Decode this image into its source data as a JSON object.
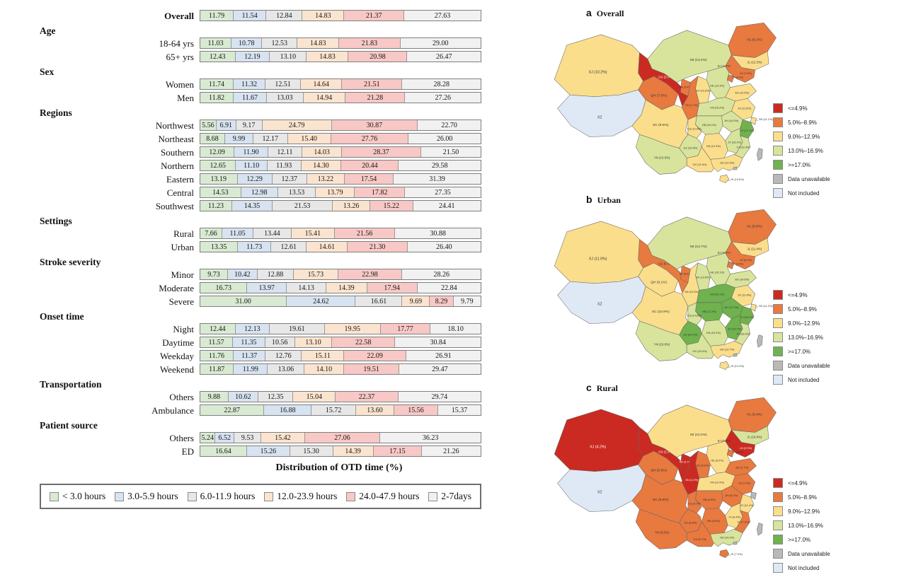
{
  "chart_data": [
    {
      "type": "bar",
      "subtype": "stacked-horizontal-100pct",
      "title": "Distribution of OTD time (%)",
      "series_labels": [
        "< 3.0 hours",
        "3.0-5.9 hours",
        "6.0-11.9 hours",
        "12.0-23.9 hours",
        "24.0-47.9 hours",
        "2-7days"
      ],
      "series_colors": [
        "#d9ead3",
        "#d7e3f0",
        "#e7e7e7",
        "#fbe4cf",
        "#f7c8c5",
        "#f1f1f1"
      ],
      "groups": [
        {
          "header": "",
          "rows": [
            {
              "label": "Overall",
              "bold": true,
              "values": [
                11.79,
                11.54,
                12.84,
                14.83,
                21.37,
                27.63
              ]
            }
          ]
        },
        {
          "header": "Age",
          "rows": [
            {
              "label": "18-64 yrs",
              "values": [
                11.03,
                10.78,
                12.53,
                14.83,
                21.83,
                29.0
              ]
            },
            {
              "label": "65+ yrs",
              "values": [
                12.43,
                12.19,
                13.1,
                14.83,
                20.98,
                26.47
              ]
            }
          ]
        },
        {
          "header": "Sex",
          "rows": [
            {
              "label": "Women",
              "values": [
                11.74,
                11.32,
                12.51,
                14.64,
                21.51,
                28.28
              ]
            },
            {
              "label": "Men",
              "values": [
                11.82,
                11.67,
                13.03,
                14.94,
                21.28,
                27.26
              ]
            }
          ]
        },
        {
          "header": "Regions",
          "rows": [
            {
              "label": "Northwest",
              "values": [
                5.56,
                6.91,
                9.17,
                24.79,
                30.87,
                22.7
              ]
            },
            {
              "label": "Northeast",
              "values": [
                8.68,
                9.99,
                12.17,
                15.4,
                27.76,
                26.0
              ]
            },
            {
              "label": "Southern",
              "values": [
                12.09,
                11.9,
                12.11,
                14.03,
                28.37,
                21.5
              ]
            },
            {
              "label": "Northern",
              "values": [
                12.65,
                11.1,
                11.93,
                14.3,
                20.44,
                29.58
              ]
            },
            {
              "label": "Eastern",
              "values": [
                13.19,
                12.29,
                12.37,
                13.22,
                17.54,
                31.39
              ]
            },
            {
              "label": "Central",
              "values": [
                14.53,
                12.98,
                13.53,
                13.79,
                17.82,
                27.35
              ]
            },
            {
              "label": "Southwest",
              "values": [
                11.23,
                14.35,
                21.53,
                13.26,
                15.22,
                24.41
              ]
            }
          ]
        },
        {
          "header": "Settings",
          "rows": [
            {
              "label": "Rural",
              "values": [
                7.66,
                11.05,
                13.44,
                15.41,
                21.56,
                30.88
              ]
            },
            {
              "label": "Urban",
              "values": [
                13.35,
                11.73,
                12.61,
                14.61,
                21.3,
                26.4
              ]
            }
          ]
        },
        {
          "header": "Stroke severity",
          "rows": [
            {
              "label": "Minor",
              "values": [
                9.73,
                10.42,
                12.88,
                15.73,
                22.98,
                28.26
              ]
            },
            {
              "label": "Moderate",
              "values": [
                16.73,
                13.97,
                14.13,
                14.39,
                17.94,
                22.84
              ]
            },
            {
              "label": "Severe",
              "values": [
                31.0,
                24.62,
                16.61,
                9.69,
                8.29,
                9.79
              ]
            }
          ]
        },
        {
          "header": "Onset time",
          "rows": [
            {
              "label": "Night",
              "values": [
                12.44,
                12.13,
                19.61,
                19.95,
                17.77,
                18.1
              ]
            },
            {
              "label": "Daytime",
              "values": [
                11.57,
                11.35,
                10.56,
                13.1,
                22.58,
                30.84
              ]
            },
            {
              "label": "Weekday",
              "values": [
                11.76,
                11.37,
                12.76,
                15.11,
                22.09,
                26.91
              ]
            },
            {
              "label": "Weekend",
              "values": [
                11.87,
                11.99,
                13.06,
                14.1,
                19.51,
                29.47
              ]
            }
          ]
        },
        {
          "header": "Transportation",
          "rows": [
            {
              "label": "Others",
              "values": [
                9.88,
                10.62,
                12.35,
                15.04,
                22.37,
                29.74
              ]
            },
            {
              "label": "Ambulance",
              "values": [
                22.87,
                16.88,
                15.72,
                13.6,
                15.56,
                15.37
              ]
            }
          ]
        },
        {
          "header": "Patient source",
          "rows": [
            {
              "label": "Others",
              "values": [
                5.24,
                6.52,
                9.53,
                15.42,
                27.06,
                36.23
              ]
            },
            {
              "label": "ED",
              "values": [
                16.64,
                15.26,
                15.3,
                14.39,
                17.15,
                21.26
              ]
            }
          ]
        }
      ]
    },
    {
      "type": "heatmap",
      "subtype": "china-choropleth",
      "legend": [
        {
          "label": "<=4.9%",
          "color": "#cb2a22"
        },
        {
          "label": "5.0%–8.9%",
          "color": "#e8793f"
        },
        {
          "label": "9.0%–12.9%",
          "color": "#fbde8c"
        },
        {
          "label": "13.0%–16.9%",
          "color": "#d8e49c"
        },
        {
          "label": ">=17.0%",
          "color": "#70b24e"
        },
        {
          "label": "Data unavailable",
          "color": "#b9b9b9"
        },
        {
          "label": "Not included",
          "color": "#dfe9f5"
        }
      ],
      "panels": [
        {
          "key": "a",
          "title": "Overall",
          "not_included": [
            "XZ"
          ],
          "unavailable": [
            "TW",
            "HK"
          ],
          "values": {
            "XJ": 10.2,
            "QH": 7.5,
            "GS": 3.4,
            "NX": 5.4,
            "IM": 13.4,
            "HL": 8.2,
            "JL": 12.3,
            "LN": 7.6,
            "BJ": 18.4,
            "TJ": 8.2,
            "HE": 13.3,
            "SX": 10.3,
            "SN": 7.1,
            "SD": 12.5,
            "HA": 16.2,
            "JS": 11.6,
            "AH": 14.0,
            "SH": 11.1,
            "ZJ": 17.1,
            "HB": 16.1,
            "CQ": 12.6,
            "JX": 16.1,
            "FJ": 13.3,
            "HN": 12.3,
            "GZ": 15.9,
            "SC": 9.6,
            "YN": 13.5,
            "GX": 11.6,
            "GD": 12.9,
            "HI": 10.6
          }
        },
        {
          "key": "b",
          "title": "Urban",
          "not_included": [
            "XZ"
          ],
          "unavailable": [
            "TW",
            "HK"
          ],
          "values": {
            "XJ": 11.0,
            "QH": 9.1,
            "GS": 6.4,
            "NX": 8.4,
            "IM": 13.7,
            "HL": 8.5,
            "JL": 11.4,
            "LN": 8.2,
            "BJ": 18.0,
            "TJ": 8.4,
            "HE": 15.1,
            "SX": 13.5,
            "SN": 10.3,
            "SD": 14.5,
            "HA": 18.1,
            "JS": 12.8,
            "AH": 17.1,
            "SH": 11.2,
            "ZJ": 19.1,
            "HB": 17.2,
            "CQ": 14.8,
            "JX": 19.7,
            "FJ": 16.0,
            "HN": 15.3,
            "GZ": 22.1,
            "SC": 10.9,
            "YN": 16.8,
            "GX": 15.3,
            "GD": 12.7,
            "HI": 12.4
          }
        },
        {
          "key": "c",
          "title": "Rural",
          "not_included": [
            "XZ"
          ],
          "unavailable": [
            "TW",
            "HK",
            "SH"
          ],
          "values": {
            "XJ": 4.2,
            "QH": 5.6,
            "GS": 1.4,
            "NX": 3.7,
            "IM": 10.2,
            "HL": 6.4,
            "JL": 16.9,
            "LN": 3.2,
            "BJ": 20.6,
            "TJ": 6.1,
            "HE": 9.2,
            "SX": 5.6,
            "SN": 1.2,
            "SD": 7.7,
            "HA": 12.9,
            "JS": 7.5,
            "AH": 8.1,
            "ZJ": 11.1,
            "HB": 8.9,
            "CQ": 5.1,
            "JX": 9.4,
            "FJ": 7.1,
            "HN": 6.5,
            "GZ": 6.5,
            "SC": 6.8,
            "YN": 8.6,
            "GX": 5.7,
            "GD": 14.2,
            "HI": 7.3
          }
        }
      ]
    }
  ]
}
